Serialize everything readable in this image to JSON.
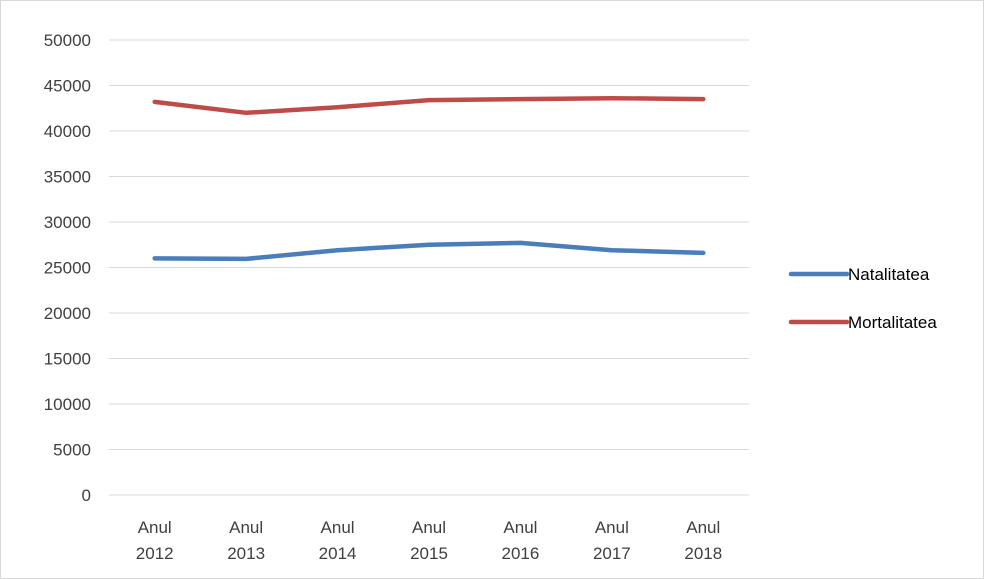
{
  "chart_data": {
    "type": "line",
    "title": "",
    "xlabel": "",
    "ylabel": "",
    "categories": [
      [
        "Anul",
        "2012"
      ],
      [
        "Anul",
        "2013"
      ],
      [
        "Anul",
        "2014"
      ],
      [
        "Anul",
        "2015"
      ],
      [
        "Anul",
        "2016"
      ],
      [
        "Anul",
        "2017"
      ],
      [
        "Anul",
        "2018"
      ]
    ],
    "ylim": [
      0,
      50000
    ],
    "yticks": [
      0,
      5000,
      10000,
      15000,
      20000,
      25000,
      30000,
      35000,
      40000,
      45000,
      50000
    ],
    "grid": true,
    "legend_position": "right",
    "series": [
      {
        "name": "Natalitatea",
        "color": "#4a7ebb",
        "values": [
          26000,
          25950,
          26900,
          27500,
          27700,
          26900,
          26600
        ]
      },
      {
        "name": "Mortalitatea",
        "color": "#be4b48",
        "values": [
          43200,
          42000,
          42600,
          43400,
          43500,
          43600,
          43500
        ]
      }
    ]
  }
}
